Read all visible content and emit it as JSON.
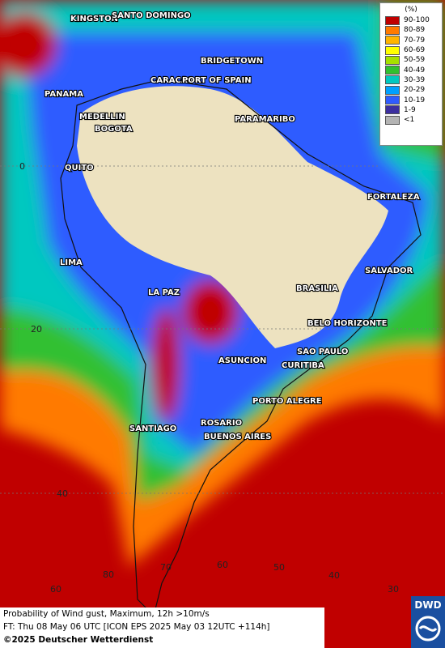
{
  "legend": {
    "title": "(%)",
    "items": [
      {
        "label": "90-100",
        "color": "#c00000"
      },
      {
        "label": "80-89",
        "color": "#ff7a00"
      },
      {
        "label": "70-79",
        "color": "#ffb400"
      },
      {
        "label": "60-69",
        "color": "#ffff00"
      },
      {
        "label": "50-59",
        "color": "#a6e000"
      },
      {
        "label": "40-49",
        "color": "#30c030"
      },
      {
        "label": "30-39",
        "color": "#00c8c0"
      },
      {
        "label": "20-29",
        "color": "#00a0ff"
      },
      {
        "label": "10-19",
        "color": "#2f5cff"
      },
      {
        "label": "1-9",
        "color": "#3c2fa0"
      },
      {
        "label": "<1",
        "color": "#b4b4b4"
      }
    ]
  },
  "cities": [
    "KINGSTON",
    "SANTO DOMINGO",
    "BRIDGETOWN",
    "CARACAS",
    "PORT OF SPAIN",
    "PANAMA",
    "MEDELLIN",
    "BOGOTA",
    "PARAMARIBO",
    "QUITO",
    "FORTALEZA",
    "LIMA",
    "SALVADOR",
    "LA PAZ",
    "BRASILIA",
    "BELO HORIZONTE",
    "ASUNCION",
    "SAO PAULO",
    "CURITIBA",
    "PORTO ALEGRE",
    "ROSARIO",
    "SANTIAGO",
    "BUENOS AIRES"
  ],
  "grid_labels": [
    "0",
    "20",
    "40",
    "60",
    "80",
    "70",
    "60",
    "50",
    "40",
    "30"
  ],
  "footer": {
    "line1": "Probability of Wind gust, Maximum, 12h >10m/s",
    "line2": "FT: Thu 08 May 06 UTC [ICON EPS 2025 May 03 12UTC +114h]",
    "copyright": "©2025 Deutscher Wetterdienst"
  },
  "logo": "DWD"
}
